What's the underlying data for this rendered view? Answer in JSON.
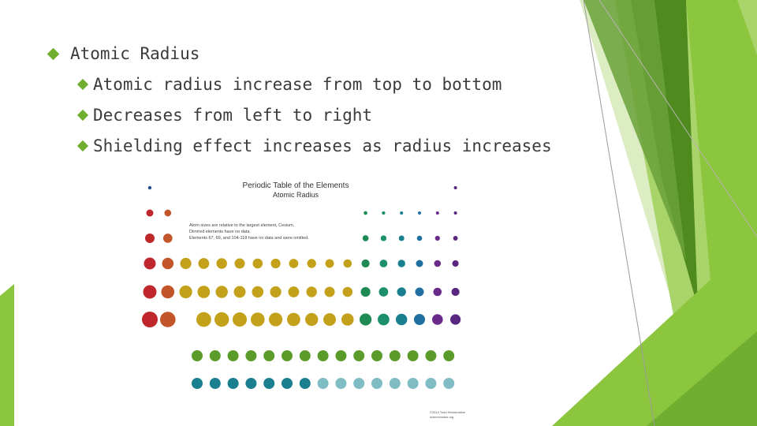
{
  "slide": {
    "title_bullet": "Atomic Radius",
    "sub_bullets": [
      "Atomic radius increase from top to bottom",
      "Decreases from left to right",
      "Shielding effect increases as radius increases"
    ]
  },
  "figure": {
    "title": "Periodic Table of the Elements",
    "subtitle": "Atomic Radius",
    "note_lines": [
      "Atom sizes are relative to the largest element, Cesium.",
      "Dim/red elements have no data.",
      "Elements 67, 69, and 104-118 have no data and were omitted."
    ],
    "credit_lines": [
      "©2014 Todd Helmenstine",
      "sciencenotes.org"
    ]
  },
  "colors": {
    "accent_green": "#6fae2e",
    "dark_green": "#4f8a1f",
    "light_green": "#a9d46a",
    "pale_green": "#dcedc4",
    "text": "#3b3b3b"
  }
}
